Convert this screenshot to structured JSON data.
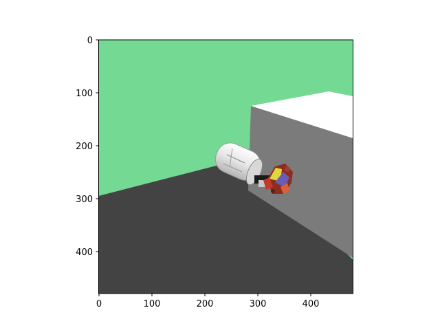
{
  "figure": {
    "x_ticks": [
      "0",
      "100",
      "200",
      "300",
      "400"
    ],
    "y_ticks": [
      "0",
      "100",
      "200",
      "300",
      "400"
    ]
  },
  "scene": {
    "background_color": "#74da93",
    "floor_color": "#434343",
    "box_side_color": "#7b7b7b",
    "box_top_color": "#ffffff",
    "robot_color": "#f2f2f2"
  }
}
